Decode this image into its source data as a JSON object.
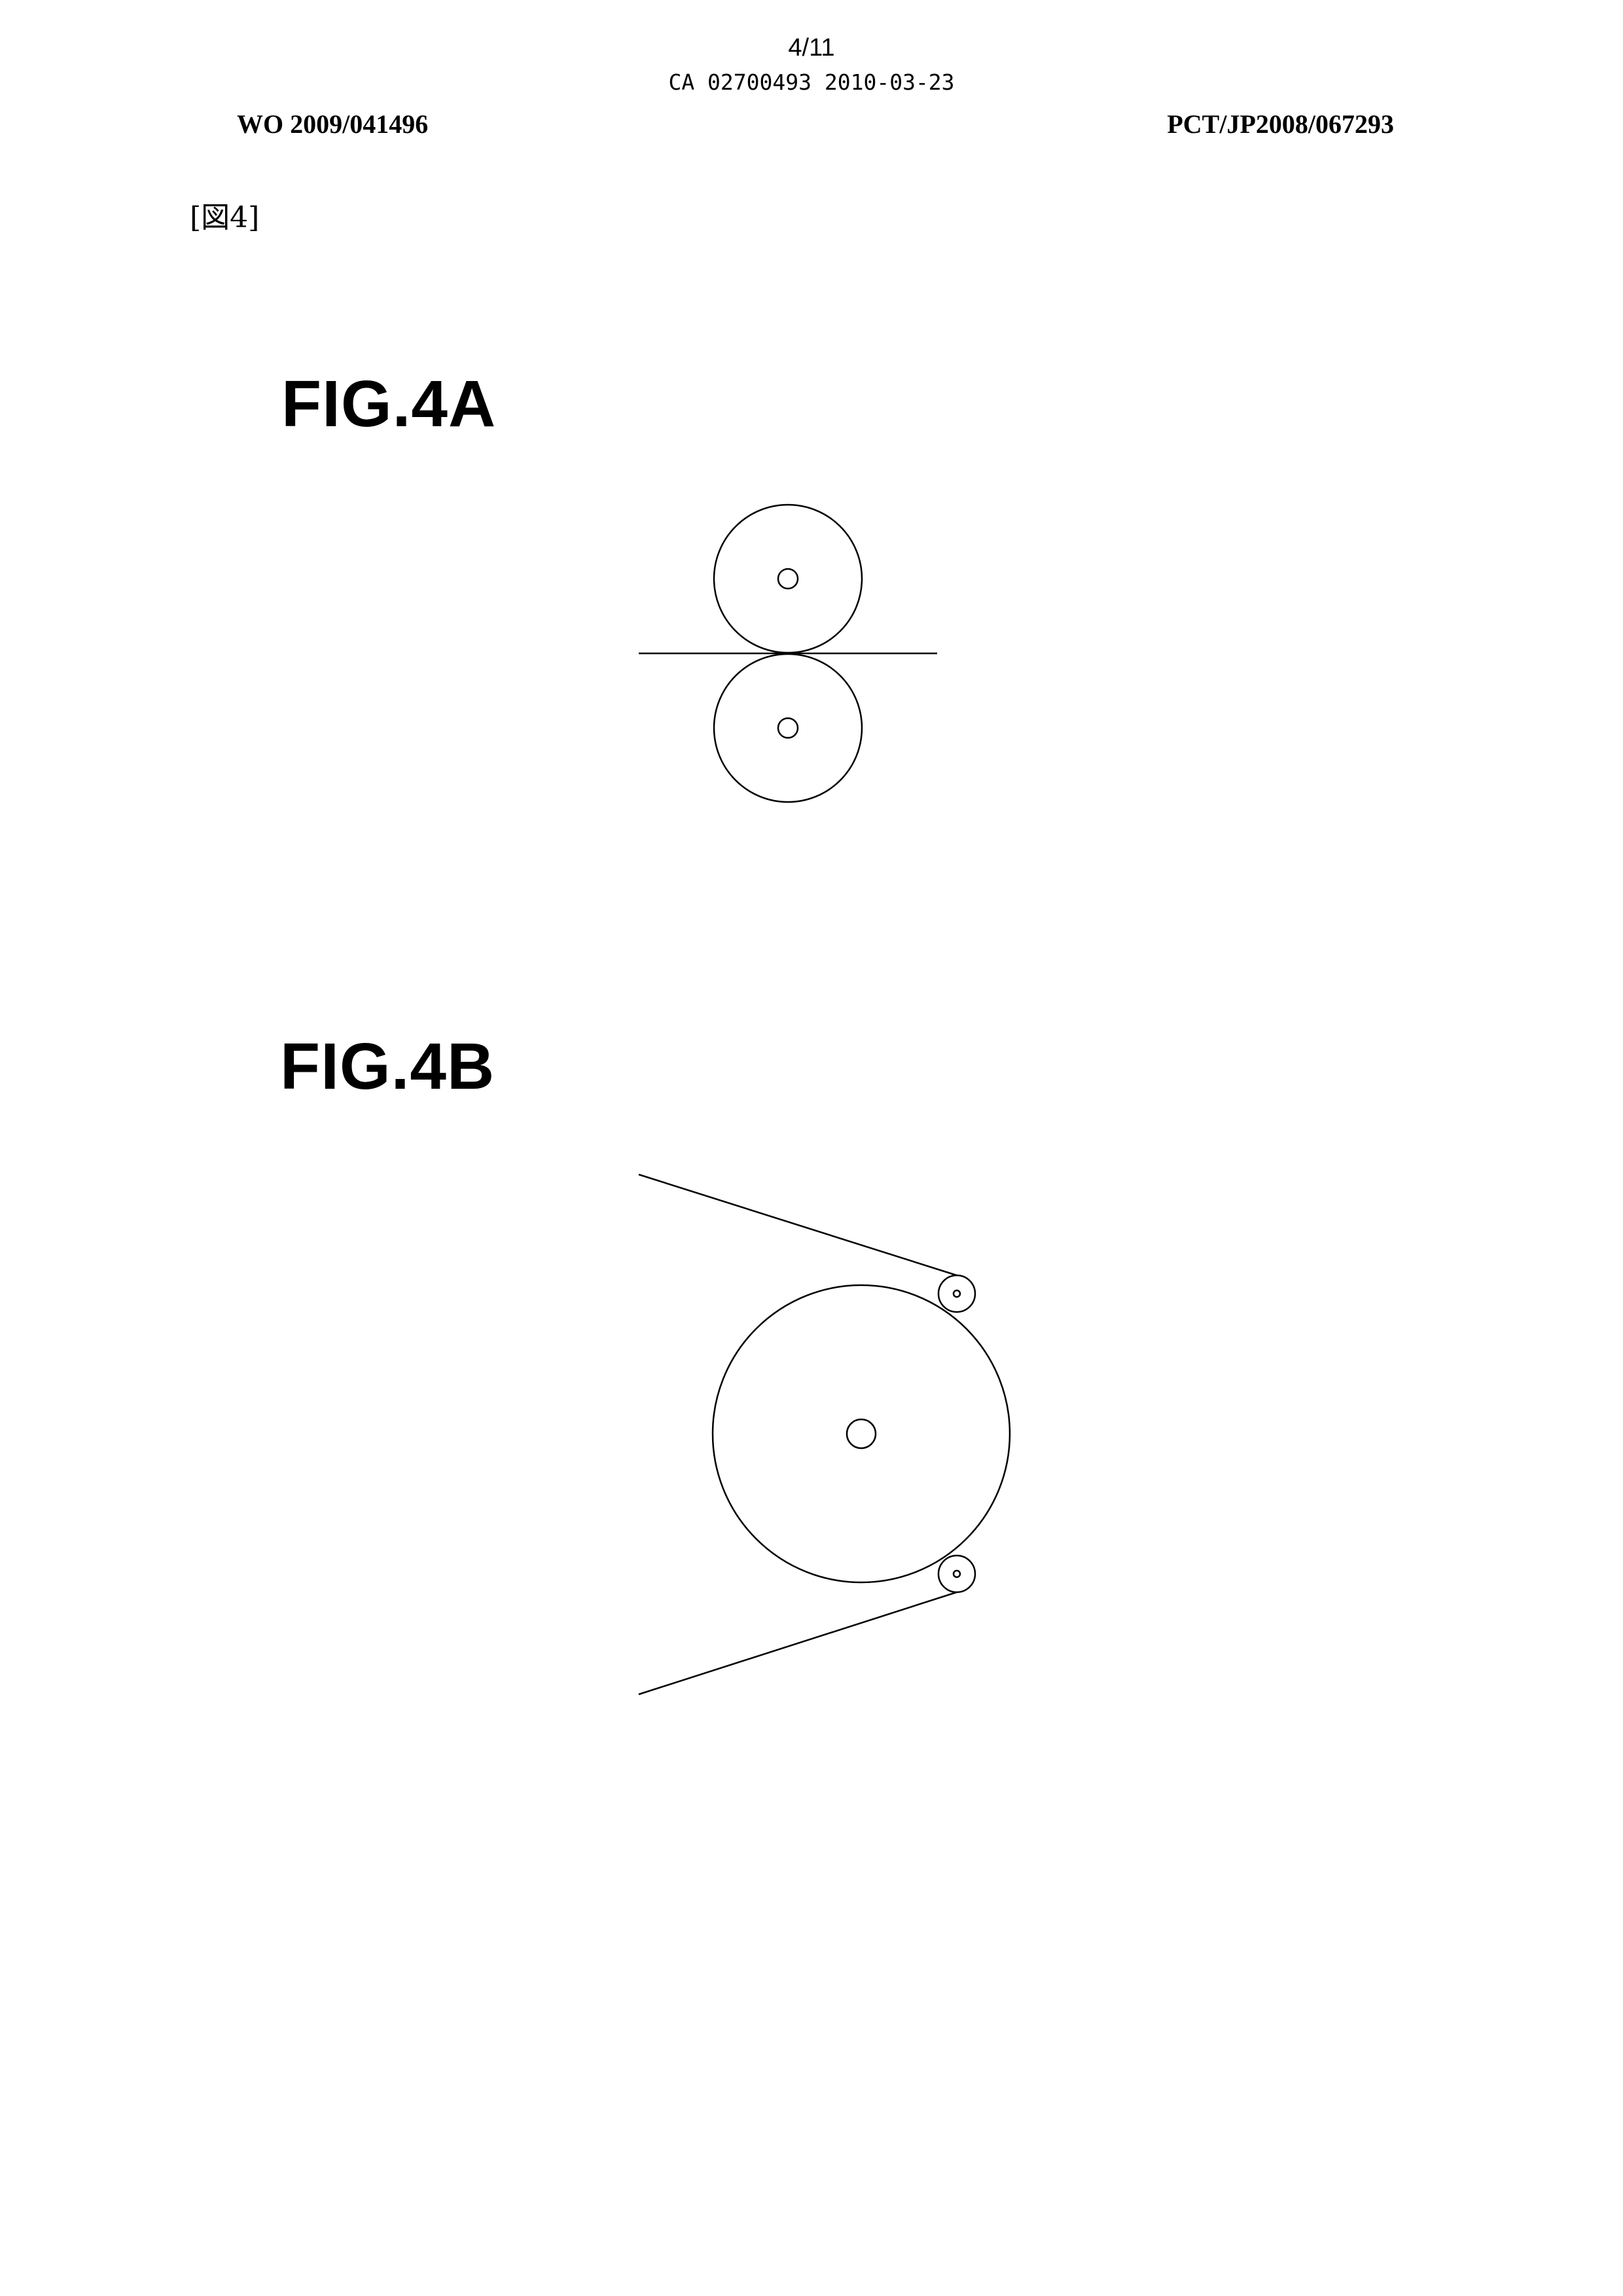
{
  "header": {
    "page_number": "4/11",
    "ca_reference": "CA 02700493 2010-03-23",
    "wo_number": "WO 2009/041496",
    "pct_number": "PCT/JP2008/067293"
  },
  "drawing_label": "[図4]",
  "figures": [
    {
      "label": "FIG.4A"
    },
    {
      "label": "FIG.4B"
    }
  ]
}
